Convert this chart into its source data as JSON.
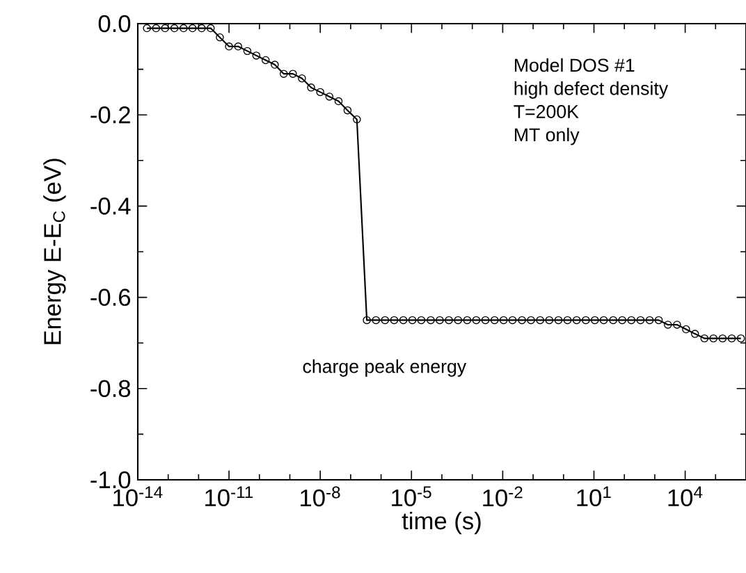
{
  "chart_data": {
    "type": "line",
    "xlabel": "time (s)",
    "ylabel": "Energy E-E$_{C}$  (eV)",
    "log": "x",
    "xlim": [
      1e-14,
      1000000.0
    ],
    "ylim": [
      -1.0,
      0.0
    ],
    "xticks": [
      {
        "value": 1e-14,
        "label": "10$^{-14}$"
      },
      {
        "value": 1e-13,
        "label": null
      },
      {
        "value": 1e-12,
        "label": null
      },
      {
        "value": 1e-11,
        "label": "10$^{-11}$"
      },
      {
        "value": 1e-10,
        "label": null
      },
      {
        "value": 1e-09,
        "label": null
      },
      {
        "value": 1e-08,
        "label": "10$^{-8}$"
      },
      {
        "value": 1e-07,
        "label": null
      },
      {
        "value": 1e-06,
        "label": null
      },
      {
        "value": 1e-05,
        "label": "10$^{-5}$"
      },
      {
        "value": 0.0001,
        "label": null
      },
      {
        "value": 0.001,
        "label": null
      },
      {
        "value": 0.01,
        "label": "10$^{-2}$"
      },
      {
        "value": 0.1,
        "label": null
      },
      {
        "value": 1,
        "label": null
      },
      {
        "value": 10,
        "label": "10$^{1}$"
      },
      {
        "value": 100,
        "label": null
      },
      {
        "value": 1000,
        "label": null
      },
      {
        "value": 10000,
        "label": "10$^{4}$"
      },
      {
        "value": 100000,
        "label": null
      }
    ],
    "yticks": [
      {
        "value": 0.0,
        "label": "0.0"
      },
      {
        "value": -0.1,
        "label": null
      },
      {
        "value": -0.2,
        "label": "-0.2"
      },
      {
        "value": -0.3,
        "label": null
      },
      {
        "value": -0.4,
        "label": "-0.4"
      },
      {
        "value": -0.5,
        "label": null
      },
      {
        "value": -0.6,
        "label": "-0.6"
      },
      {
        "value": -0.7,
        "label": null
      },
      {
        "value": -0.8,
        "label": "-0.8"
      },
      {
        "value": -0.9,
        "label": null
      },
      {
        "value": -1.0,
        "label": "-1.0"
      }
    ],
    "marker": "circle",
    "line_style": "solid",
    "annotations": [
      "Model DOS #1",
      "high defect density",
      "T=200K",
      "MT only",
      "charge peak energy"
    ],
    "series": [
      {
        "color": "#000000",
        "x": [
          2e-14,
          4e-14,
          7.9e-14,
          1.6e-13,
          3.2e-13,
          6.3e-13,
          1.26e-12,
          2.5e-12,
          5e-12,
          1e-11,
          2e-11,
          4e-11,
          7.9e-11,
          1.6e-10,
          3.2e-10,
          6.3e-10,
          1.26e-09,
          2.5e-09,
          5e-09,
          1e-08,
          2e-08,
          4e-08,
          7.9e-08,
          1.6e-07,
          3.4e-07,
          6.8e-07,
          1.35e-06,
          2.7e-06,
          5.4e-06,
          1.07e-05,
          2.1e-05,
          4.3e-05,
          8.5e-05,
          0.00017,
          0.00034,
          0.00068,
          0.00135,
          0.0027,
          0.0054,
          0.0107,
          0.021,
          0.043,
          0.085,
          0.17,
          0.34,
          0.68,
          1.35,
          2.7,
          5.4,
          10.7,
          21,
          43,
          85,
          170,
          340,
          680,
          1350,
          2700,
          5400,
          10700,
          21000,
          43000,
          85000,
          170000,
          340000,
          680000
        ],
        "values": [
          -0.01,
          -0.01,
          -0.01,
          -0.01,
          -0.01,
          -0.01,
          -0.01,
          -0.01,
          -0.03,
          -0.05,
          -0.05,
          -0.06,
          -0.07,
          -0.08,
          -0.09,
          -0.11,
          -0.11,
          -0.12,
          -0.14,
          -0.15,
          -0.16,
          -0.17,
          -0.19,
          -0.21,
          -0.65,
          -0.65,
          -0.65,
          -0.65,
          -0.65,
          -0.65,
          -0.65,
          -0.65,
          -0.65,
          -0.65,
          -0.65,
          -0.65,
          -0.65,
          -0.65,
          -0.65,
          -0.65,
          -0.65,
          -0.65,
          -0.65,
          -0.65,
          -0.65,
          -0.65,
          -0.65,
          -0.65,
          -0.65,
          -0.65,
          -0.65,
          -0.65,
          -0.65,
          -0.65,
          -0.65,
          -0.65,
          -0.65,
          -0.66,
          -0.66,
          -0.67,
          -0.68,
          -0.69,
          -0.69,
          -0.69,
          -0.69,
          -0.69
        ]
      }
    ]
  }
}
